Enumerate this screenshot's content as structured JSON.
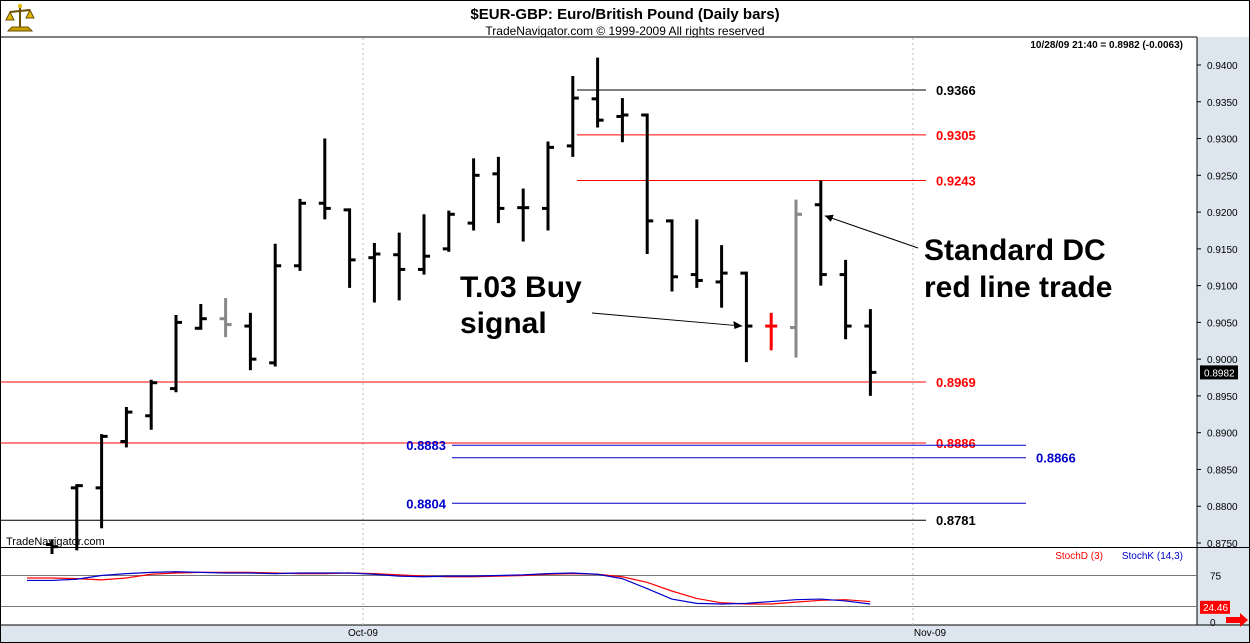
{
  "header": {
    "title": "$EUR-GBP:  Euro/British Pound  (Daily bars)",
    "subtitle": "TradeNavigator.com © 1999-2009 All rights reserved",
    "quote": "10/28/09 21:40 = 0.8982 (-0.0063)",
    "watermark": "TradeNavigator.com",
    "logo_icon": "scales-logo-icon"
  },
  "colors": {
    "black": "#000000",
    "gray": "#888888",
    "red": "#ff0000",
    "dark_red": "#cc0000",
    "blue": "#0000cc",
    "pale_blue": "#dde6ef"
  },
  "chart_data": [
    {
      "type": "ohlc",
      "title": "$EUR-GBP:  Euro/British Pound  (Daily bars)",
      "y_axis_side": "right",
      "ylim": [
        0.8738,
        0.9413
      ],
      "y_ticks": [
        "0.9400",
        "0.9350",
        "0.9300",
        "0.9250",
        "0.9200",
        "0.9150",
        "0.9100",
        "0.9050",
        "0.9000",
        "0.8950",
        "0.8900",
        "0.8850",
        "0.8800",
        "0.8750"
      ],
      "x_ticks": [
        "Oct-09",
        "Nov-09"
      ],
      "last_price_label": "0.8982",
      "bars": [
        {
          "o": 0.8748,
          "h": 0.8755,
          "l": 0.8735,
          "c": 0.8745,
          "color": "black"
        },
        {
          "o": 0.8825,
          "h": 0.883,
          "l": 0.874,
          "c": 0.8828,
          "color": "black"
        },
        {
          "o": 0.8825,
          "h": 0.8898,
          "l": 0.877,
          "c": 0.8895,
          "color": "black"
        },
        {
          "o": 0.8888,
          "h": 0.8935,
          "l": 0.888,
          "c": 0.8928,
          "color": "black"
        },
        {
          "o": 0.8923,
          "h": 0.8972,
          "l": 0.8904,
          "c": 0.8968,
          "color": "black"
        },
        {
          "o": 0.896,
          "h": 0.906,
          "l": 0.8955,
          "c": 0.905,
          "color": "black"
        },
        {
          "o": 0.9042,
          "h": 0.9075,
          "l": 0.904,
          "c": 0.9055,
          "color": "black"
        },
        {
          "o": 0.9055,
          "h": 0.9083,
          "l": 0.903,
          "c": 0.9047,
          "color": "gray"
        },
        {
          "o": 0.9045,
          "h": 0.9063,
          "l": 0.8985,
          "c": 0.9,
          "color": "black"
        },
        {
          "o": 0.8995,
          "h": 0.9157,
          "l": 0.899,
          "c": 0.9127,
          "color": "black"
        },
        {
          "o": 0.9127,
          "h": 0.9218,
          "l": 0.912,
          "c": 0.9212,
          "color": "black"
        },
        {
          "o": 0.9212,
          "h": 0.93,
          "l": 0.919,
          "c": 0.9205,
          "color": "black"
        },
        {
          "o": 0.9203,
          "h": 0.9205,
          "l": 0.9097,
          "c": 0.9135,
          "color": "black"
        },
        {
          "o": 0.9138,
          "h": 0.9158,
          "l": 0.9077,
          "c": 0.9143,
          "color": "black"
        },
        {
          "o": 0.9142,
          "h": 0.9172,
          "l": 0.908,
          "c": 0.9122,
          "color": "black"
        },
        {
          "o": 0.9122,
          "h": 0.9197,
          "l": 0.9115,
          "c": 0.914,
          "color": "black"
        },
        {
          "o": 0.915,
          "h": 0.9202,
          "l": 0.9146,
          "c": 0.9197,
          "color": "black"
        },
        {
          "o": 0.9185,
          "h": 0.9273,
          "l": 0.9175,
          "c": 0.925,
          "color": "black"
        },
        {
          "o": 0.9252,
          "h": 0.9275,
          "l": 0.9185,
          "c": 0.9205,
          "color": "black"
        },
        {
          "o": 0.9206,
          "h": 0.9232,
          "l": 0.916,
          "c": 0.9206,
          "color": "black"
        },
        {
          "o": 0.9205,
          "h": 0.9296,
          "l": 0.9175,
          "c": 0.9288,
          "color": "black"
        },
        {
          "o": 0.929,
          "h": 0.9385,
          "l": 0.9275,
          "c": 0.9355,
          "color": "black"
        },
        {
          "o": 0.9354,
          "h": 0.941,
          "l": 0.9315,
          "c": 0.9325,
          "color": "black"
        },
        {
          "o": 0.933,
          "h": 0.9355,
          "l": 0.9295,
          "c": 0.9332,
          "color": "black"
        },
        {
          "o": 0.9332,
          "h": 0.9334,
          "l": 0.9143,
          "c": 0.9188,
          "color": "black"
        },
        {
          "o": 0.9188,
          "h": 0.919,
          "l": 0.9092,
          "c": 0.9112,
          "color": "black"
        },
        {
          "o": 0.9115,
          "h": 0.919,
          "l": 0.9097,
          "c": 0.9107,
          "color": "black"
        },
        {
          "o": 0.9105,
          "h": 0.9155,
          "l": 0.907,
          "c": 0.9117,
          "color": "black"
        },
        {
          "o": 0.9117,
          "h": 0.9119,
          "l": 0.8996,
          "c": 0.9045,
          "color": "black"
        },
        {
          "o": 0.9045,
          "h": 0.9063,
          "l": 0.9012,
          "c": 0.9045,
          "color": "red"
        },
        {
          "o": 0.9043,
          "h": 0.9217,
          "l": 0.9002,
          "c": 0.9197,
          "color": "gray"
        },
        {
          "o": 0.921,
          "h": 0.9243,
          "l": 0.91,
          "c": 0.9115,
          "color": "black"
        },
        {
          "o": 0.9115,
          "h": 0.9135,
          "l": 0.9027,
          "c": 0.9045,
          "color": "black"
        },
        {
          "o": 0.9045,
          "h": 0.9068,
          "l": 0.895,
          "c": 0.8982,
          "color": "black"
        }
      ],
      "levels": [
        {
          "price": 0.9366,
          "label": "0.9366",
          "color": "#000000",
          "range": "mid"
        },
        {
          "price": 0.9305,
          "label": "0.9305",
          "color": "#ff0000",
          "range": "mid"
        },
        {
          "price": 0.9243,
          "label": "0.9243",
          "color": "#ff0000",
          "range": "mid"
        },
        {
          "price": 0.8969,
          "label": "0.8969",
          "color": "#ff0000",
          "range": "full"
        },
        {
          "price": 0.8886,
          "label": "0.8886",
          "color": "#ff0000",
          "range": "full"
        },
        {
          "price": 0.8883,
          "label": "0.8883",
          "color": "#0000cc",
          "range": "blue_a"
        },
        {
          "price": 0.8866,
          "label": "0.8866",
          "color": "#0000cc",
          "range": "blue_b"
        },
        {
          "price": 0.8804,
          "label": "0.8804",
          "color": "#0000cc",
          "range": "blue_a"
        },
        {
          "price": 0.8781,
          "label": "0.8781",
          "color": "#000000",
          "range": "full"
        }
      ],
      "annotations": [
        {
          "text": [
            "T.03 Buy",
            "signal"
          ],
          "target_bar": 28
        },
        {
          "text": [
            "Standard DC",
            "red line trade"
          ],
          "target_bar": 31
        }
      ]
    },
    {
      "type": "line",
      "ylim": [
        0,
        100
      ],
      "y_ticks": [
        "75",
        "25",
        "0"
      ],
      "hlines": [
        75,
        25
      ],
      "value_label": "24.46",
      "series": [
        {
          "name": "StochD (3)",
          "color": "#ff0000",
          "values": [
            71,
            71,
            70,
            68,
            71,
            77,
            79,
            80,
            80,
            80,
            79,
            78,
            78,
            79,
            78,
            76,
            74,
            73,
            73,
            74,
            75,
            77,
            78,
            77,
            73,
            64,
            50,
            38,
            31,
            29,
            29,
            32,
            35,
            36,
            33
          ]
        },
        {
          "name": "StochK (14,3)",
          "color": "#0000cc",
          "values": [
            67,
            67,
            69,
            75,
            78,
            80,
            81,
            80,
            79,
            79,
            78,
            79,
            79,
            79,
            77,
            74,
            73,
            74,
            74,
            75,
            76,
            78,
            79,
            77,
            70,
            54,
            37,
            30,
            29,
            30,
            33,
            36,
            37,
            34,
            29
          ]
        }
      ]
    }
  ]
}
